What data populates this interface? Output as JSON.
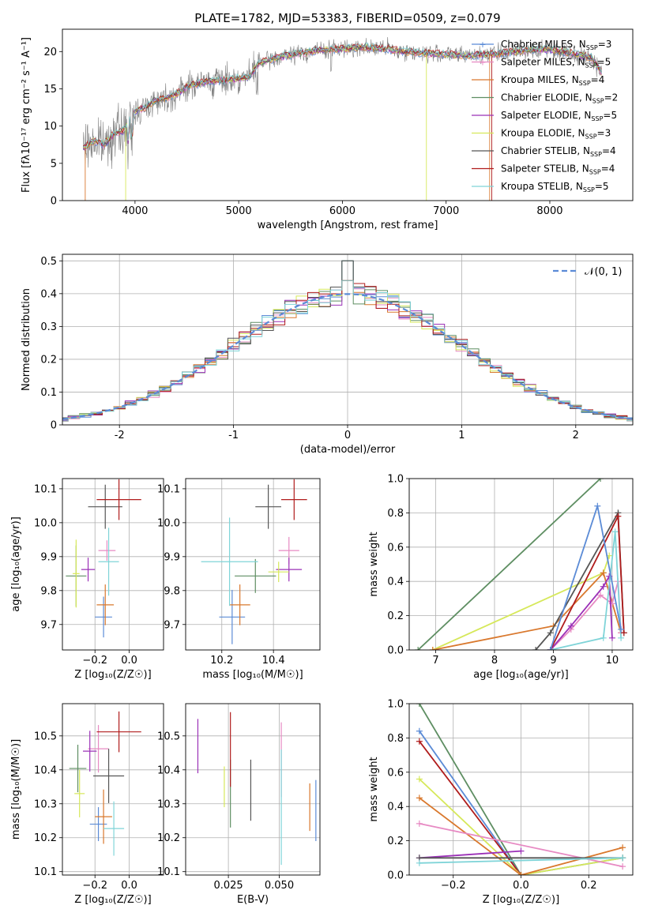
{
  "colors": {
    "c0": "#5b8bd6",
    "c1": "#e78ac3",
    "c2": "#d9782d",
    "c3": "#5e8e62",
    "c4": "#9b30b7",
    "c5": "#d6e85a",
    "c6": "#555555",
    "c7": "#b01c1c",
    "c8": "#7fd4d8",
    "grid": "#b0b0b0",
    "spectrum": "#808080",
    "gauss": "#5b8bd6"
  },
  "legend_entries": [
    {
      "name": "Chabrier MILES",
      "n": "3",
      "color": "c0"
    },
    {
      "name": "Salpeter MILES",
      "n": "5",
      "color": "c1"
    },
    {
      "name": "Kroupa MILES",
      "n": "4",
      "color": "c2"
    },
    {
      "name": "Chabrier ELODIE",
      "n": "2",
      "color": "c3"
    },
    {
      "name": "Salpeter ELODIE",
      "n": "5",
      "color": "c4"
    },
    {
      "name": "Kroupa ELODIE",
      "n": "3",
      "color": "c5"
    },
    {
      "name": "Chabrier STELIB",
      "n": "4",
      "color": "c6"
    },
    {
      "name": "Salpeter STELIB",
      "n": "4",
      "color": "c7"
    },
    {
      "name": "Kroupa STELIB",
      "n": "5",
      "color": "c8"
    }
  ],
  "chart_data": [
    {
      "id": "spectrum",
      "type": "line",
      "title": "PLATE=1782, MJD=53383, FIBERID=0509, z=0.079",
      "xlabel": "wavelength [Angstrom, rest frame]",
      "ylabel": "Flux [fλ10⁻¹⁷ erg cm⁻² s⁻¹ A⁻¹]",
      "xlim": [
        3300,
        8800
      ],
      "ylim": [
        0,
        23
      ],
      "xticks": [
        4000,
        5000,
        6000,
        7000,
        8000
      ],
      "yticks": [
        0,
        5,
        10,
        15,
        20
      ],
      "grid": false,
      "legend": "right",
      "continuum": [
        [
          3500,
          7.0
        ],
        [
          3600,
          8.0
        ],
        [
          3700,
          7.5
        ],
        [
          3800,
          9.0
        ],
        [
          3900,
          9.5
        ],
        [
          4000,
          12.0
        ],
        [
          4100,
          12.5
        ],
        [
          4200,
          13.5
        ],
        [
          4300,
          13.8
        ],
        [
          4400,
          14.3
        ],
        [
          4500,
          15.3
        ],
        [
          4700,
          16.0
        ],
        [
          4900,
          16.2
        ],
        [
          5100,
          16.6
        ],
        [
          5200,
          18.5
        ],
        [
          5400,
          19.3
        ],
        [
          5600,
          19.8
        ],
        [
          5800,
          20.2
        ],
        [
          6000,
          20.4
        ],
        [
          6200,
          20.6
        ],
        [
          6400,
          20.4
        ],
        [
          6600,
          20.0
        ],
        [
          6800,
          19.8
        ],
        [
          7000,
          19.6
        ],
        [
          7200,
          19.5
        ],
        [
          7400,
          19.6
        ],
        [
          7600,
          19.9
        ],
        [
          7800,
          20.2
        ],
        [
          8000,
          20.3
        ],
        [
          8200,
          19.8
        ],
        [
          8400,
          19.2
        ],
        [
          8500,
          17.2
        ]
      ]
    },
    {
      "id": "residuals",
      "type": "step",
      "xlabel": "(data-model)/error",
      "ylabel": "Normed distribution",
      "xlim": [
        -2.5,
        2.5
      ],
      "ylim": [
        0,
        0.52
      ],
      "xticks": [
        -2,
        -1,
        0,
        1,
        2
      ],
      "yticks": [
        0,
        0.1,
        0.2,
        0.3,
        0.4,
        0.5
      ],
      "grid": true,
      "legend": "top-right",
      "gauss_label": "𝒩(0, 1)",
      "bin_width": 0.1
    },
    {
      "id": "age_vs_Z",
      "type": "errorbar",
      "xlabel": "Z [log₁₀(Z/Z☉)]",
      "ylabel": "age  [log₁₀(age/yr)]",
      "xlim": [
        -0.39,
        0.2
      ],
      "ylim": [
        9.625,
        10.13
      ],
      "xticks": [
        -0.2,
        0.0
      ],
      "xticklabels": [
        "−0.2",
        "0.0"
      ],
      "yticks": [
        9.7,
        9.8,
        9.9,
        10.0,
        10.1
      ],
      "yticklabels": [
        "9.7",
        "9.8",
        "9.9",
        "10.0",
        "10.1"
      ],
      "grid": true,
      "points": [
        {
          "c": "c0",
          "x": -0.15,
          "y": 9.722,
          "xe": 0.05,
          "ye": 0.06
        },
        {
          "c": "c1",
          "x": -0.13,
          "y": 9.918,
          "xe": 0.05,
          "ye": 0.03
        },
        {
          "c": "c2",
          "x": -0.14,
          "y": 9.758,
          "xe": 0.05,
          "ye": 0.06
        },
        {
          "c": "c3",
          "x": -0.31,
          "y": 9.843,
          "xe": 0.06,
          "ye": 0.09
        },
        {
          "c": "c4",
          "x": -0.24,
          "y": 9.862,
          "xe": 0.04,
          "ye": 0.035
        },
        {
          "c": "c5",
          "x": -0.31,
          "y": 9.85,
          "xe": 0.02,
          "ye": 0.1
        },
        {
          "c": "c6",
          "x": -0.14,
          "y": 10.047,
          "xe": 0.1,
          "ye": 0.065
        },
        {
          "c": "c7",
          "x": -0.06,
          "y": 10.068,
          "xe": 0.13,
          "ye": 0.06
        },
        {
          "c": "c8",
          "x": -0.12,
          "y": 9.885,
          "xe": 0.06,
          "ye": 0.1
        }
      ]
    },
    {
      "id": "age_vs_mass",
      "type": "errorbar",
      "xlabel": "mass [log₁₀(M/M☉)]",
      "ylabel": "",
      "xlim": [
        10.06,
        10.58
      ],
      "ylim": [
        9.625,
        10.13
      ],
      "xticks": [
        10.2,
        10.4
      ],
      "xticklabels": [
        "10.2",
        "10.4"
      ],
      "yticks": [
        9.7,
        9.8,
        9.9,
        10.0,
        10.1
      ],
      "yticklabels": [
        "9.7",
        "9.8",
        "9.9",
        "10.0",
        "10.1"
      ],
      "grid": true,
      "points": [
        {
          "c": "c0",
          "x": 10.24,
          "y": 9.722,
          "xe": 0.05,
          "ye": 0.08
        },
        {
          "c": "c1",
          "x": 10.46,
          "y": 9.918,
          "xe": 0.04,
          "ye": 0.04
        },
        {
          "c": "c2",
          "x": 10.27,
          "y": 9.758,
          "xe": 0.04,
          "ye": 0.06
        },
        {
          "c": "c3",
          "x": 10.33,
          "y": 9.843,
          "xe": 0.08,
          "ye": 0.05
        },
        {
          "c": "c4",
          "x": 10.46,
          "y": 9.862,
          "xe": 0.05,
          "ye": 0.035
        },
        {
          "c": "c5",
          "x": 10.42,
          "y": 9.855,
          "xe": 0.04,
          "ye": 0.03
        },
        {
          "c": "c6",
          "x": 10.38,
          "y": 10.047,
          "xe": 0.05,
          "ye": 0.065
        },
        {
          "c": "c7",
          "x": 10.48,
          "y": 10.068,
          "xe": 0.05,
          "ye": 0.06
        },
        {
          "c": "c8",
          "x": 10.23,
          "y": 9.885,
          "xe": 0.11,
          "ye": 0.13
        }
      ]
    },
    {
      "id": "mw_vs_age",
      "type": "line",
      "xlabel": "age  [log₁₀(age/yr)]",
      "ylabel": "mass weight",
      "xlim": [
        6.55,
        10.35
      ],
      "ylim": [
        0,
        1.0
      ],
      "xticks": [
        7,
        8,
        9,
        10
      ],
      "xticklabels": [
        "7",
        "8",
        "9",
        "10"
      ],
      "yticks": [
        0,
        0.2,
        0.4,
        0.6,
        0.8,
        1.0
      ],
      "yticklabels": [
        "0.0",
        "0.2",
        "0.4",
        "0.6",
        "0.8",
        "1.0"
      ],
      "grid": true,
      "series": [
        {
          "c": "c3",
          "pts": [
            [
              6.7,
              0.0
            ],
            [
              9.8,
              1.0
            ]
          ]
        },
        {
          "c": "c5",
          "pts": [
            [
              6.95,
              0.0
            ],
            [
              9.85,
              0.45
            ],
            [
              9.95,
              0.55
            ]
          ]
        },
        {
          "c": "c2",
          "pts": [
            [
              6.95,
              0.0
            ],
            [
              9.0,
              0.14
            ],
            [
              9.85,
              0.45
            ],
            [
              10.15,
              0.1
            ]
          ]
        },
        {
          "c": "c1",
          "pts": [
            [
              8.95,
              0.0
            ],
            [
              9.3,
              0.12
            ],
            [
              9.8,
              0.32
            ],
            [
              10.0,
              0.27
            ],
            [
              10.1,
              0.4
            ],
            [
              10.15,
              0.1
            ]
          ]
        },
        {
          "c": "c6",
          "pts": [
            [
              8.7,
              0.0
            ],
            [
              8.95,
              0.1
            ],
            [
              10.1,
              0.8
            ],
            [
              10.2,
              0.1
            ]
          ]
        },
        {
          "c": "c4",
          "pts": [
            [
              8.95,
              0.0
            ],
            [
              9.3,
              0.14
            ],
            [
              9.85,
              0.37
            ],
            [
              9.95,
              0.43
            ],
            [
              10.0,
              0.07
            ]
          ]
        },
        {
          "c": "c8",
          "pts": [
            [
              8.95,
              0.0
            ],
            [
              9.85,
              0.07
            ],
            [
              10.05,
              0.69
            ],
            [
              10.15,
              0.07
            ]
          ]
        },
        {
          "c": "c7",
          "pts": [
            [
              8.95,
              0.0
            ],
            [
              10.1,
              0.78
            ],
            [
              10.2,
              0.1
            ]
          ]
        },
        {
          "c": "c0",
          "pts": [
            [
              8.95,
              0.0
            ],
            [
              9.75,
              0.84
            ],
            [
              10.15,
              0.12
            ]
          ]
        }
      ]
    },
    {
      "id": "mass_vs_Z",
      "type": "errorbar",
      "xlabel": "Z [log₁₀(Z/Z☉)]",
      "ylabel": "mass [log₁₀(M/M☉)]",
      "xlim": [
        -0.39,
        0.2
      ],
      "ylim": [
        10.09,
        10.595
      ],
      "xticks": [
        -0.2,
        0.0
      ],
      "xticklabels": [
        "−0.2",
        "0.0"
      ],
      "yticks": [
        10.1,
        10.2,
        10.3,
        10.4,
        10.5
      ],
      "yticklabels": [
        "10.1",
        "10.2",
        "10.3",
        "10.4",
        "10.5"
      ],
      "grid": true,
      "points": [
        {
          "c": "c0",
          "x": -0.18,
          "y": 10.24,
          "xe": 0.05,
          "ye": 0.05
        },
        {
          "c": "c1",
          "x": -0.18,
          "y": 10.462,
          "xe": 0.06,
          "ye": 0.07
        },
        {
          "c": "c2",
          "x": -0.15,
          "y": 10.262,
          "xe": 0.05,
          "ye": 0.08
        },
        {
          "c": "c3",
          "x": -0.3,
          "y": 10.404,
          "xe": 0.05,
          "ye": 0.07
        },
        {
          "c": "c4",
          "x": -0.23,
          "y": 10.455,
          "xe": 0.04,
          "ye": 0.06
        },
        {
          "c": "c5",
          "x": -0.29,
          "y": 10.33,
          "xe": 0.03,
          "ye": 0.07
        },
        {
          "c": "c6",
          "x": -0.12,
          "y": 10.382,
          "xe": 0.09,
          "ye": 0.08
        },
        {
          "c": "c7",
          "x": -0.06,
          "y": 10.512,
          "xe": 0.13,
          "ye": 0.06
        },
        {
          "c": "c8",
          "x": -0.09,
          "y": 10.227,
          "xe": 0.06,
          "ye": 0.08
        }
      ]
    },
    {
      "id": "mass_vs_EBV",
      "type": "errorbar",
      "xlabel": "E(B-V)",
      "ylabel": "",
      "xlim": [
        0.004,
        0.07
      ],
      "ylim": [
        10.09,
        10.595
      ],
      "xticks": [
        0.025,
        0.05
      ],
      "xticklabels": [
        "0.025",
        "0.050"
      ],
      "yticks": [
        10.1,
        10.2,
        10.3,
        10.4,
        10.5
      ],
      "yticklabels": [
        "10.1",
        "10.2",
        "10.3",
        "10.4",
        "10.5"
      ],
      "grid": true,
      "points": [
        {
          "c": "c0",
          "x": 0.068,
          "y": 10.28,
          "xe": 0,
          "ye": 0.09
        },
        {
          "c": "c1",
          "x": 0.051,
          "y": 10.43,
          "xe": 0,
          "ye": 0.11
        },
        {
          "c": "c2",
          "x": 0.065,
          "y": 10.29,
          "xe": 0,
          "ye": 0.07
        },
        {
          "c": "c3",
          "x": 0.026,
          "y": 10.33,
          "xe": 0,
          "ye": 0.1
        },
        {
          "c": "c4",
          "x": 0.01,
          "y": 10.47,
          "xe": 0,
          "ye": 0.08
        },
        {
          "c": "c5",
          "x": 0.023,
          "y": 10.35,
          "xe": 0,
          "ye": 0.06
        },
        {
          "c": "c6",
          "x": 0.036,
          "y": 10.34,
          "xe": 0,
          "ye": 0.09
        },
        {
          "c": "c7",
          "x": 0.026,
          "y": 10.46,
          "xe": 0,
          "ye": 0.11
        },
        {
          "c": "c8",
          "x": 0.051,
          "y": 10.29,
          "xe": 0,
          "ye": 0.17
        }
      ]
    },
    {
      "id": "mw_vs_Z",
      "type": "line",
      "xlabel": "Z [log₁₀(Z/Z☉)]",
      "ylabel": "mass weight",
      "xlim": [
        -0.33,
        0.33
      ],
      "ylim": [
        0,
        1.0
      ],
      "xticks": [
        -0.2,
        0.0,
        0.2
      ],
      "xticklabels": [
        "−0.2",
        "0.0",
        "0.2"
      ],
      "yticks": [
        0,
        0.2,
        0.4,
        0.6,
        0.8,
        1.0
      ],
      "yticklabels": [
        "0.0",
        "0.2",
        "0.4",
        "0.6",
        "0.8",
        "1.0"
      ],
      "grid": true,
      "series": [
        {
          "c": "c3",
          "pts": [
            [
              -0.3,
              1.0
            ],
            [
              0.0,
              0.0
            ]
          ]
        },
        {
          "c": "c0",
          "pts": [
            [
              -0.3,
              0.84
            ],
            [
              0.0,
              0.0
            ],
            [
              0.3,
              0.1
            ]
          ]
        },
        {
          "c": "c7",
          "pts": [
            [
              -0.3,
              0.78
            ],
            [
              0.0,
              0.0
            ]
          ]
        },
        {
          "c": "c5",
          "pts": [
            [
              -0.3,
              0.56
            ],
            [
              0.0,
              0.0
            ],
            [
              0.3,
              0.1
            ]
          ]
        },
        {
          "c": "c2",
          "pts": [
            [
              -0.3,
              0.45
            ],
            [
              0.0,
              0.0
            ],
            [
              0.3,
              0.16
            ]
          ]
        },
        {
          "c": "c1",
          "pts": [
            [
              -0.3,
              0.3
            ],
            [
              0.3,
              0.05
            ]
          ]
        },
        {
          "c": "c4",
          "pts": [
            [
              -0.3,
              0.1
            ],
            [
              0.0,
              0.14
            ]
          ]
        },
        {
          "c": "c6",
          "pts": [
            [
              -0.3,
              0.1
            ],
            [
              0.3,
              0.1
            ]
          ]
        },
        {
          "c": "c8",
          "pts": [
            [
              -0.3,
              0.07
            ],
            [
              0.3,
              0.1
            ]
          ]
        }
      ]
    }
  ]
}
